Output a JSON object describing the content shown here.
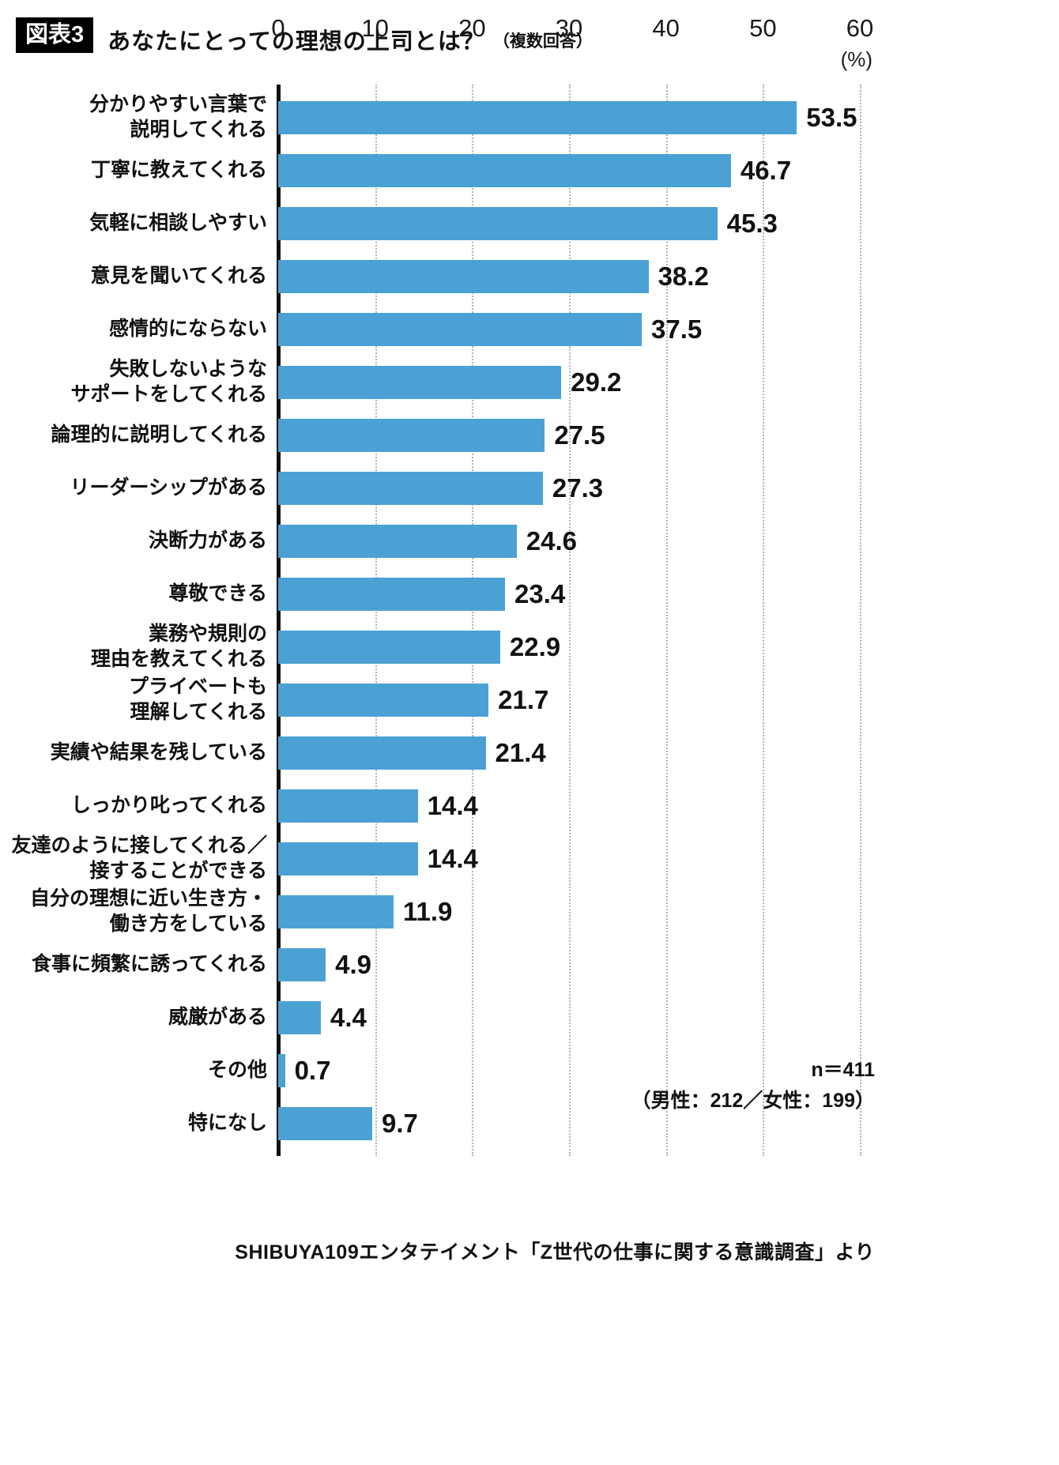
{
  "header": {
    "badge": "図表3",
    "title": "あなたにとっての理想の上司とは？",
    "subtitle": "（複数回答）"
  },
  "chart_data": {
    "type": "bar",
    "orientation": "horizontal",
    "title": "あなたにとっての理想の上司とは？（複数回答）",
    "bar_color": "#4ba1d3",
    "xlim": [
      0,
      60
    ],
    "x_ticks": [
      0,
      10,
      20,
      30,
      40,
      50,
      60
    ],
    "x_unit_label": "(%)",
    "grid": "dotted-vertical",
    "categories": [
      "分かりやすい言葉で\n説明してくれる",
      "丁寧に教えてくれる",
      "気軽に相談しやすい",
      "意見を聞いてくれる",
      "感情的にならない",
      "失敗しないような\nサポートをしてくれる",
      "論理的に説明してくれる",
      "リーダーシップがある",
      "決断力がある",
      "尊敬できる",
      "業務や規則の\n理由を教えてくれる",
      "プライベートも\n理解してくれる",
      "実績や結果を残している",
      "しっかり叱ってくれる",
      "友達のように接してくれる／\n接することができる",
      "自分の理想に近い生き方・\n働き方をしている",
      "食事に頻繁に誘ってくれる",
      "威厳がある",
      "その他",
      "特になし"
    ],
    "values": [
      53.5,
      46.7,
      45.3,
      38.2,
      37.5,
      29.2,
      27.5,
      27.3,
      24.6,
      23.4,
      22.9,
      21.7,
      21.4,
      14.4,
      14.4,
      11.9,
      4.9,
      4.4,
      0.7,
      9.7
    ]
  },
  "note": {
    "n": "n＝411",
    "breakdown": "（男性：212／女性：199）"
  },
  "source": "SHIBUYA109エンタテイメント「Z世代の仕事に関する意識調査」より"
}
